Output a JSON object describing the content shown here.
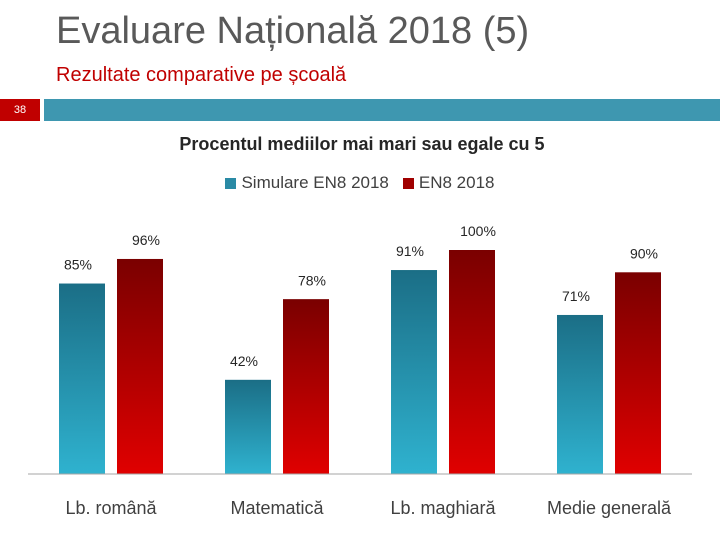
{
  "slide": {
    "title": "Evaluare Națională 2018 (5)",
    "subtitle": "Rezultate comparative pe școală",
    "number": "38"
  },
  "colors": {
    "accent_bar": "#3e97b0",
    "number_box": "#c00000",
    "series1": "#2b9bb5",
    "series2": "#c00000"
  },
  "chart_data": {
    "type": "bar",
    "title": "Procentul mediilor mai mari sau egale cu 5",
    "categories": [
      "Lb. română",
      "Matematică",
      "Lb. maghiară",
      "Medie generală"
    ],
    "series": [
      {
        "name": "Simulare EN8 2018",
        "values": [
          85,
          42,
          91,
          71
        ],
        "labels": [
          "85%",
          "42%",
          "91%",
          "71%"
        ]
      },
      {
        "name": "EN8 2018",
        "values": [
          96,
          78,
          100,
          90
        ],
        "labels": [
          "96%",
          "78%",
          "100%",
          "90%"
        ]
      }
    ],
    "ylim": [
      0,
      100
    ],
    "xlabel": "",
    "ylabel": "",
    "grid": false,
    "legend": "top"
  }
}
